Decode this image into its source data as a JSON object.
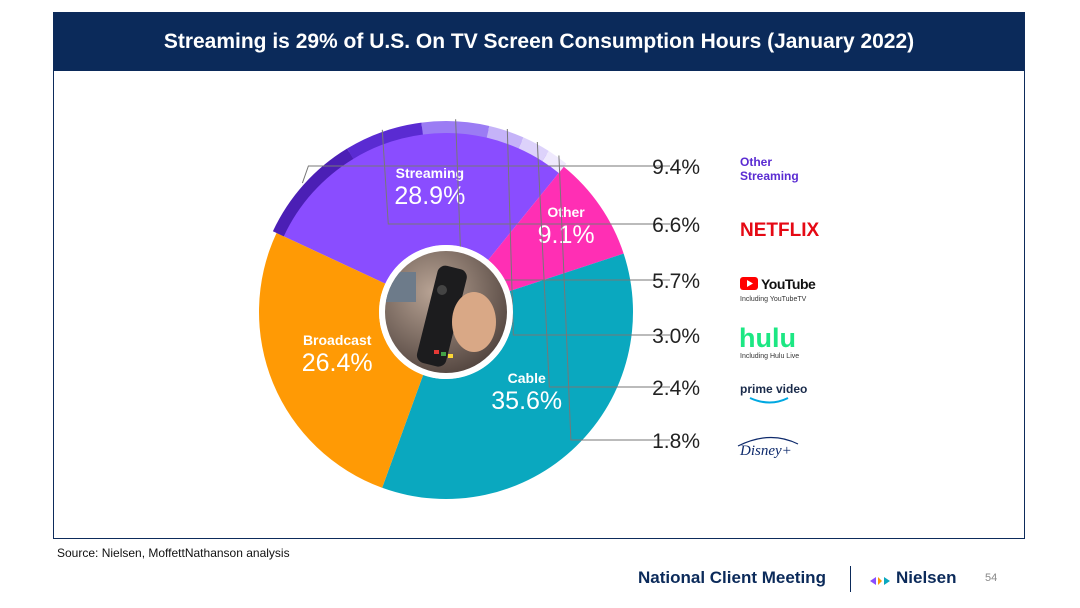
{
  "chart_data": {
    "type": "pie",
    "title": "Streaming is 29% of U.S. On TV Screen Consumption Hours (January 2022)",
    "slices": [
      {
        "label": "Streaming",
        "value": 28.9,
        "display": "28.9%",
        "color": "#8a4dff"
      },
      {
        "label": "Other",
        "value": 9.1,
        "display": "9.1%",
        "color": "#ff2fb4"
      },
      {
        "label": "Cable",
        "value": 35.6,
        "display": "35.6%",
        "color": "#0aa8bf"
      },
      {
        "label": "Broadcast",
        "value": 26.4,
        "display": "26.4%",
        "color": "#ff9a05"
      }
    ],
    "streaming_breakdown": [
      {
        "label": "Other Streaming",
        "value": 9.4,
        "display": "9.4%",
        "color": "#4b1fb5"
      },
      {
        "label": "NETFLIX",
        "value": 6.6,
        "display": "6.6%",
        "color": "#5a2bd2"
      },
      {
        "label": "YouTube",
        "sublabel": "Including YouTubeTV",
        "value": 5.7,
        "display": "5.7%",
        "color": "#9b7cf4"
      },
      {
        "label": "hulu",
        "sublabel": "Including Hulu Live",
        "value": 3.0,
        "display": "3.0%",
        "color": "#c5b3f8"
      },
      {
        "label": "prime video",
        "value": 2.4,
        "display": "2.4%",
        "color": "#ddd2fb"
      },
      {
        "label": "Disney+",
        "value": 1.8,
        "display": "1.8%",
        "color": "#efe9fd"
      }
    ]
  },
  "source": "Source: Nielsen, MoffettNathanson analysis",
  "footer": {
    "meeting": "National Client Meeting",
    "brand": "Nielsen",
    "page": "54"
  }
}
